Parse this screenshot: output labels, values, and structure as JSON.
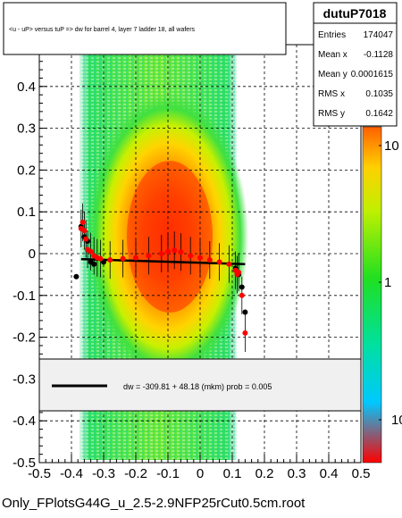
{
  "chart_data": {
    "type": "heatmap",
    "title": "<u - uP>       versus  tuP =>  dw for barrel 4, layer 7 ladder 18, all wafers",
    "filename": "Only_FPlotsG44G_u_2.5-2.9NFP25rCut0.5cm.root",
    "xlim": [
      -0.5,
      0.5
    ],
    "ylim": [
      -0.5,
      0.5
    ],
    "x_ticks": [
      "-0.5",
      "-0.4",
      "-0.3",
      "-0.2",
      "-0.1",
      "0",
      "0.1",
      "0.2",
      "0.3",
      "0.4",
      "0.5"
    ],
    "y_ticks": [
      "-0.5",
      "-0.4",
      "-0.3",
      "-0.2",
      "-0.1",
      "0",
      "0.1",
      "0.2",
      "0.3",
      "0.4",
      "0.5"
    ],
    "z_scale": "log",
    "z_ticks": [
      "1",
      "10"
    ],
    "grid": true,
    "stats": {
      "name": "dutuP7018",
      "rows": [
        {
          "label": "Entries",
          "value": "174047"
        },
        {
          "label": "Mean x",
          "value": "-0.1128"
        },
        {
          "label": "Mean y",
          "value": "0.0001615"
        },
        {
          "label": "RMS x",
          "value": "0.1035"
        },
        {
          "label": "RMS y",
          "value": "0.1642"
        }
      ]
    },
    "fit_label": "dw = -309.81 + 48.18 (mkm) prob = 0.005",
    "fit_line": {
      "x": [
        -0.37,
        0.14
      ],
      "y": [
        -0.013,
        -0.025
      ]
    },
    "profile_red": [
      {
        "x": -0.37,
        "y": 0.06
      },
      {
        "x": -0.365,
        "y": 0.075
      },
      {
        "x": -0.36,
        "y": 0.055
      },
      {
        "x": -0.355,
        "y": 0.035
      },
      {
        "x": -0.35,
        "y": 0.01
      },
      {
        "x": -0.34,
        "y": 0.005
      },
      {
        "x": -0.33,
        "y": -0.005
      },
      {
        "x": -0.32,
        "y": -0.01
      },
      {
        "x": -0.31,
        "y": -0.012
      },
      {
        "x": -0.28,
        "y": -0.015
      },
      {
        "x": -0.24,
        "y": -0.012
      },
      {
        "x": -0.2,
        "y": -0.01
      },
      {
        "x": -0.16,
        "y": -0.005
      },
      {
        "x": -0.12,
        "y": 0.0
      },
      {
        "x": -0.1,
        "y": 0.005
      },
      {
        "x": -0.08,
        "y": 0.008
      },
      {
        "x": -0.06,
        "y": 0.004
      },
      {
        "x": -0.03,
        "y": -0.005
      },
      {
        "x": 0.0,
        "y": -0.01
      },
      {
        "x": 0.03,
        "y": -0.015
      },
      {
        "x": 0.06,
        "y": -0.02
      },
      {
        "x": 0.09,
        "y": -0.025
      },
      {
        "x": 0.11,
        "y": -0.04
      },
      {
        "x": 0.115,
        "y": -0.05
      },
      {
        "x": 0.12,
        "y": -0.045
      },
      {
        "x": 0.13,
        "y": -0.1
      },
      {
        "x": 0.14,
        "y": -0.19
      }
    ],
    "profile_black": [
      {
        "x": -0.385,
        "y": -0.055
      },
      {
        "x": -0.37,
        "y": 0.065
      },
      {
        "x": -0.36,
        "y": 0.04
      },
      {
        "x": -0.35,
        "y": 0.03
      },
      {
        "x": -0.34,
        "y": -0.02
      },
      {
        "x": -0.33,
        "y": -0.025
      },
      {
        "x": -0.3,
        "y": -0.02
      },
      {
        "x": 0.11,
        "y": -0.035
      },
      {
        "x": 0.12,
        "y": -0.05
      },
      {
        "x": 0.13,
        "y": -0.08
      },
      {
        "x": 0.14,
        "y": -0.14
      }
    ]
  }
}
